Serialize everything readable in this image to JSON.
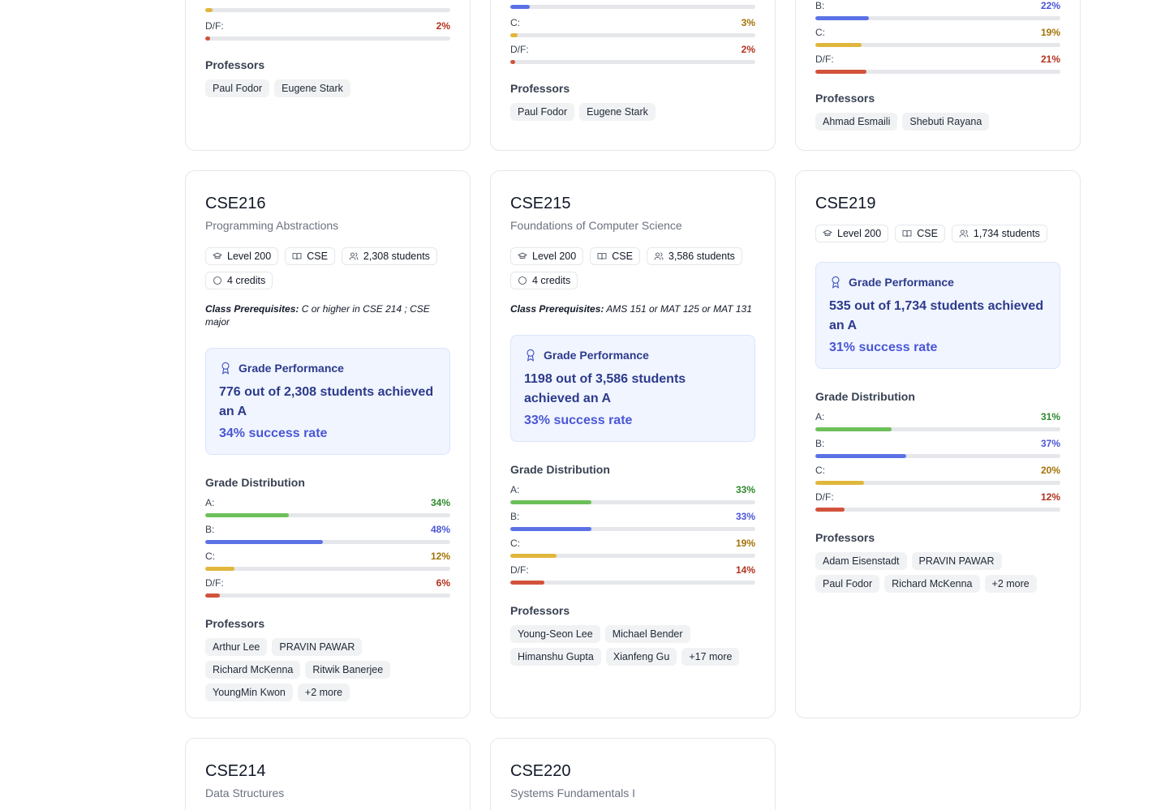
{
  "top_cards": [
    {
      "grades": [
        {
          "label": "D/F:",
          "pct": "2%",
          "value": 2,
          "cls": "D"
        }
      ],
      "top_bar": {
        "value": 3,
        "cls": "C"
      },
      "professors_title": "Professors",
      "professors": [
        "Paul Fodor",
        "Eugene Stark"
      ]
    },
    {
      "top_bar": {
        "value": 8,
        "cls": "B"
      },
      "grades": [
        {
          "label": "C:",
          "pct": "3%",
          "value": 3,
          "cls": "C"
        },
        {
          "label": "D/F:",
          "pct": "2%",
          "value": 2,
          "cls": "D"
        }
      ],
      "professors_title": "Professors",
      "professors": [
        "Paul Fodor",
        "Eugene Stark"
      ]
    },
    {
      "grades": [
        {
          "label": "B:",
          "pct": "22%",
          "value": 22,
          "cls": "B"
        },
        {
          "label": "C:",
          "pct": "19%",
          "value": 19,
          "cls": "C"
        },
        {
          "label": "D/F:",
          "pct": "21%",
          "value": 21,
          "cls": "D"
        }
      ],
      "professors_title": "Professors",
      "professors": [
        "Ahmad Esmaili",
        "Shebuti Rayana"
      ]
    }
  ],
  "cards": [
    {
      "code": "CSE216",
      "title": "Programming Abstractions",
      "level": "Level 200",
      "dept": "CSE",
      "students": "2,308 students",
      "credits": "4 credits",
      "prereq_label": "Class Prerequisites:",
      "prereq_text": " C or higher in CSE 214 ; CSE major",
      "perf_title": "Grade Performance",
      "perf_main": "776 out of 2,308 students achieved an A",
      "perf_rate": "34% success rate",
      "dist_title": "Grade Distribution",
      "grades": [
        {
          "label": "A:",
          "pct": "34%",
          "value": 34,
          "cls": "A"
        },
        {
          "label": "B:",
          "pct": "48%",
          "value": 48,
          "cls": "B"
        },
        {
          "label": "C:",
          "pct": "12%",
          "value": 12,
          "cls": "C"
        },
        {
          "label": "D/F:",
          "pct": "6%",
          "value": 6,
          "cls": "D"
        }
      ],
      "professors_title": "Professors",
      "professors": [
        "Arthur Lee",
        "PRAVIN PAWAR",
        "Richard McKenna",
        "Ritwik Banerjee",
        "YoungMin Kwon",
        "+2 more"
      ]
    },
    {
      "code": "CSE215",
      "title": "Foundations of Computer Science",
      "level": "Level 200",
      "dept": "CSE",
      "students": "3,586 students",
      "credits": "4 credits",
      "prereq_label": "Class Prerequisites:",
      "prereq_text": " AMS 151 or MAT 125 or MAT 131",
      "perf_title": "Grade Performance",
      "perf_main": "1198 out of 3,586 students achieved an A",
      "perf_rate": "33% success rate",
      "dist_title": "Grade Distribution",
      "grades": [
        {
          "label": "A:",
          "pct": "33%",
          "value": 33,
          "cls": "A"
        },
        {
          "label": "B:",
          "pct": "33%",
          "value": 33,
          "cls": "B"
        },
        {
          "label": "C:",
          "pct": "19%",
          "value": 19,
          "cls": "C"
        },
        {
          "label": "D/F:",
          "pct": "14%",
          "value": 14,
          "cls": "D"
        }
      ],
      "professors_title": "Professors",
      "professors": [
        "Young-Seon Lee",
        "Michael Bender",
        "Himanshu Gupta",
        "Xianfeng Gu",
        "+17 more"
      ]
    },
    {
      "code": "CSE219",
      "title": "",
      "level": "Level 200",
      "dept": "CSE",
      "students": "1,734 students",
      "credits": "",
      "prereq_label": "",
      "prereq_text": "",
      "perf_title": "Grade Performance",
      "perf_main": "535 out of 1,734 students achieved an A",
      "perf_rate": "31% success rate",
      "dist_title": "Grade Distribution",
      "grades": [
        {
          "label": "A:",
          "pct": "31%",
          "value": 31,
          "cls": "A"
        },
        {
          "label": "B:",
          "pct": "37%",
          "value": 37,
          "cls": "B"
        },
        {
          "label": "C:",
          "pct": "20%",
          "value": 20,
          "cls": "C"
        },
        {
          "label": "D/F:",
          "pct": "12%",
          "value": 12,
          "cls": "D"
        }
      ],
      "professors_title": "Professors",
      "professors": [
        "Adam Eisenstadt",
        "PRAVIN PAWAR",
        "Paul Fodor",
        "Richard McKenna",
        "+2 more"
      ]
    }
  ],
  "bottom_cards": [
    {
      "code": "CSE214",
      "title": "Data Structures"
    },
    {
      "code": "CSE220",
      "title": "Systems Fundamentals I"
    }
  ],
  "icons": {
    "level": "graduation-cap-icon",
    "dept": "book-icon",
    "students": "users-icon",
    "credits": "circle-icon",
    "perf": "award-icon"
  }
}
